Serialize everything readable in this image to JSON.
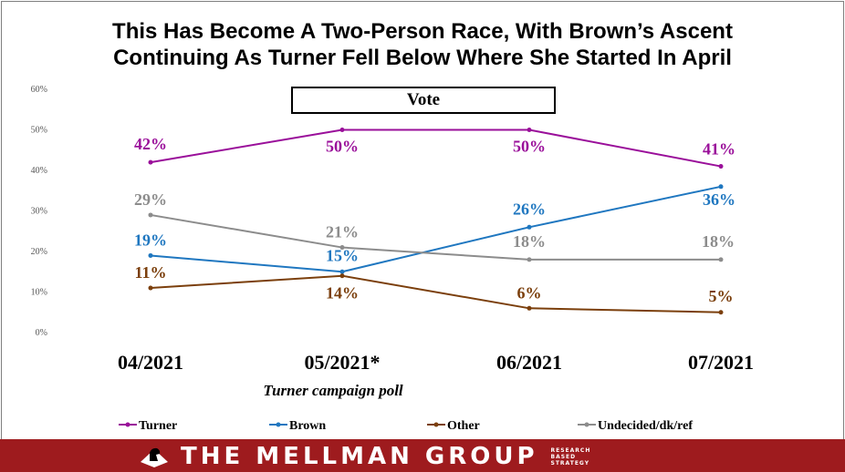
{
  "chart_data": {
    "type": "line",
    "title_lines": [
      "This Has Become A Two-Person Race, With Brown’s Ascent",
      "Continuing As Turner Fell Below Where She Started In April"
    ],
    "subtitle": "Vote",
    "categories": [
      "04/2021",
      "05/2021*",
      "06/2021",
      "07/2021"
    ],
    "x_annotation": "Turner campaign poll",
    "ylim": [
      0,
      60
    ],
    "y_ticks": [
      "0%",
      "10%",
      "20%",
      "30%",
      "40%",
      "50%",
      "60%"
    ],
    "grid": false,
    "legend_position": "bottom",
    "series": [
      {
        "name": "Turner",
        "color": "#9a0f9a",
        "values": [
          42,
          50,
          50,
          41
        ],
        "labels": [
          "42%",
          "50%",
          "50%",
          "41%"
        ]
      },
      {
        "name": "Brown",
        "color": "#1f77c0",
        "values": [
          19,
          15,
          26,
          36
        ],
        "labels": [
          "19%",
          "15%",
          "26%",
          "36%"
        ]
      },
      {
        "name": "Other",
        "color": "#7b3f0c",
        "values": [
          11,
          14,
          6,
          5
        ],
        "labels": [
          "11%",
          "14%",
          "6%",
          "5%"
        ]
      },
      {
        "name": "Undecided/dk/ref",
        "color": "#8c8c8c",
        "values": [
          29,
          21,
          18,
          18
        ],
        "labels": [
          "29%",
          "21%",
          "18%",
          "18%"
        ]
      }
    ]
  },
  "footer": {
    "brand": "THE MELLMAN GROUP",
    "tagline": [
      "RESEARCH",
      "BASED",
      "STRATEGY"
    ],
    "background_color": "#9e1b1e"
  }
}
